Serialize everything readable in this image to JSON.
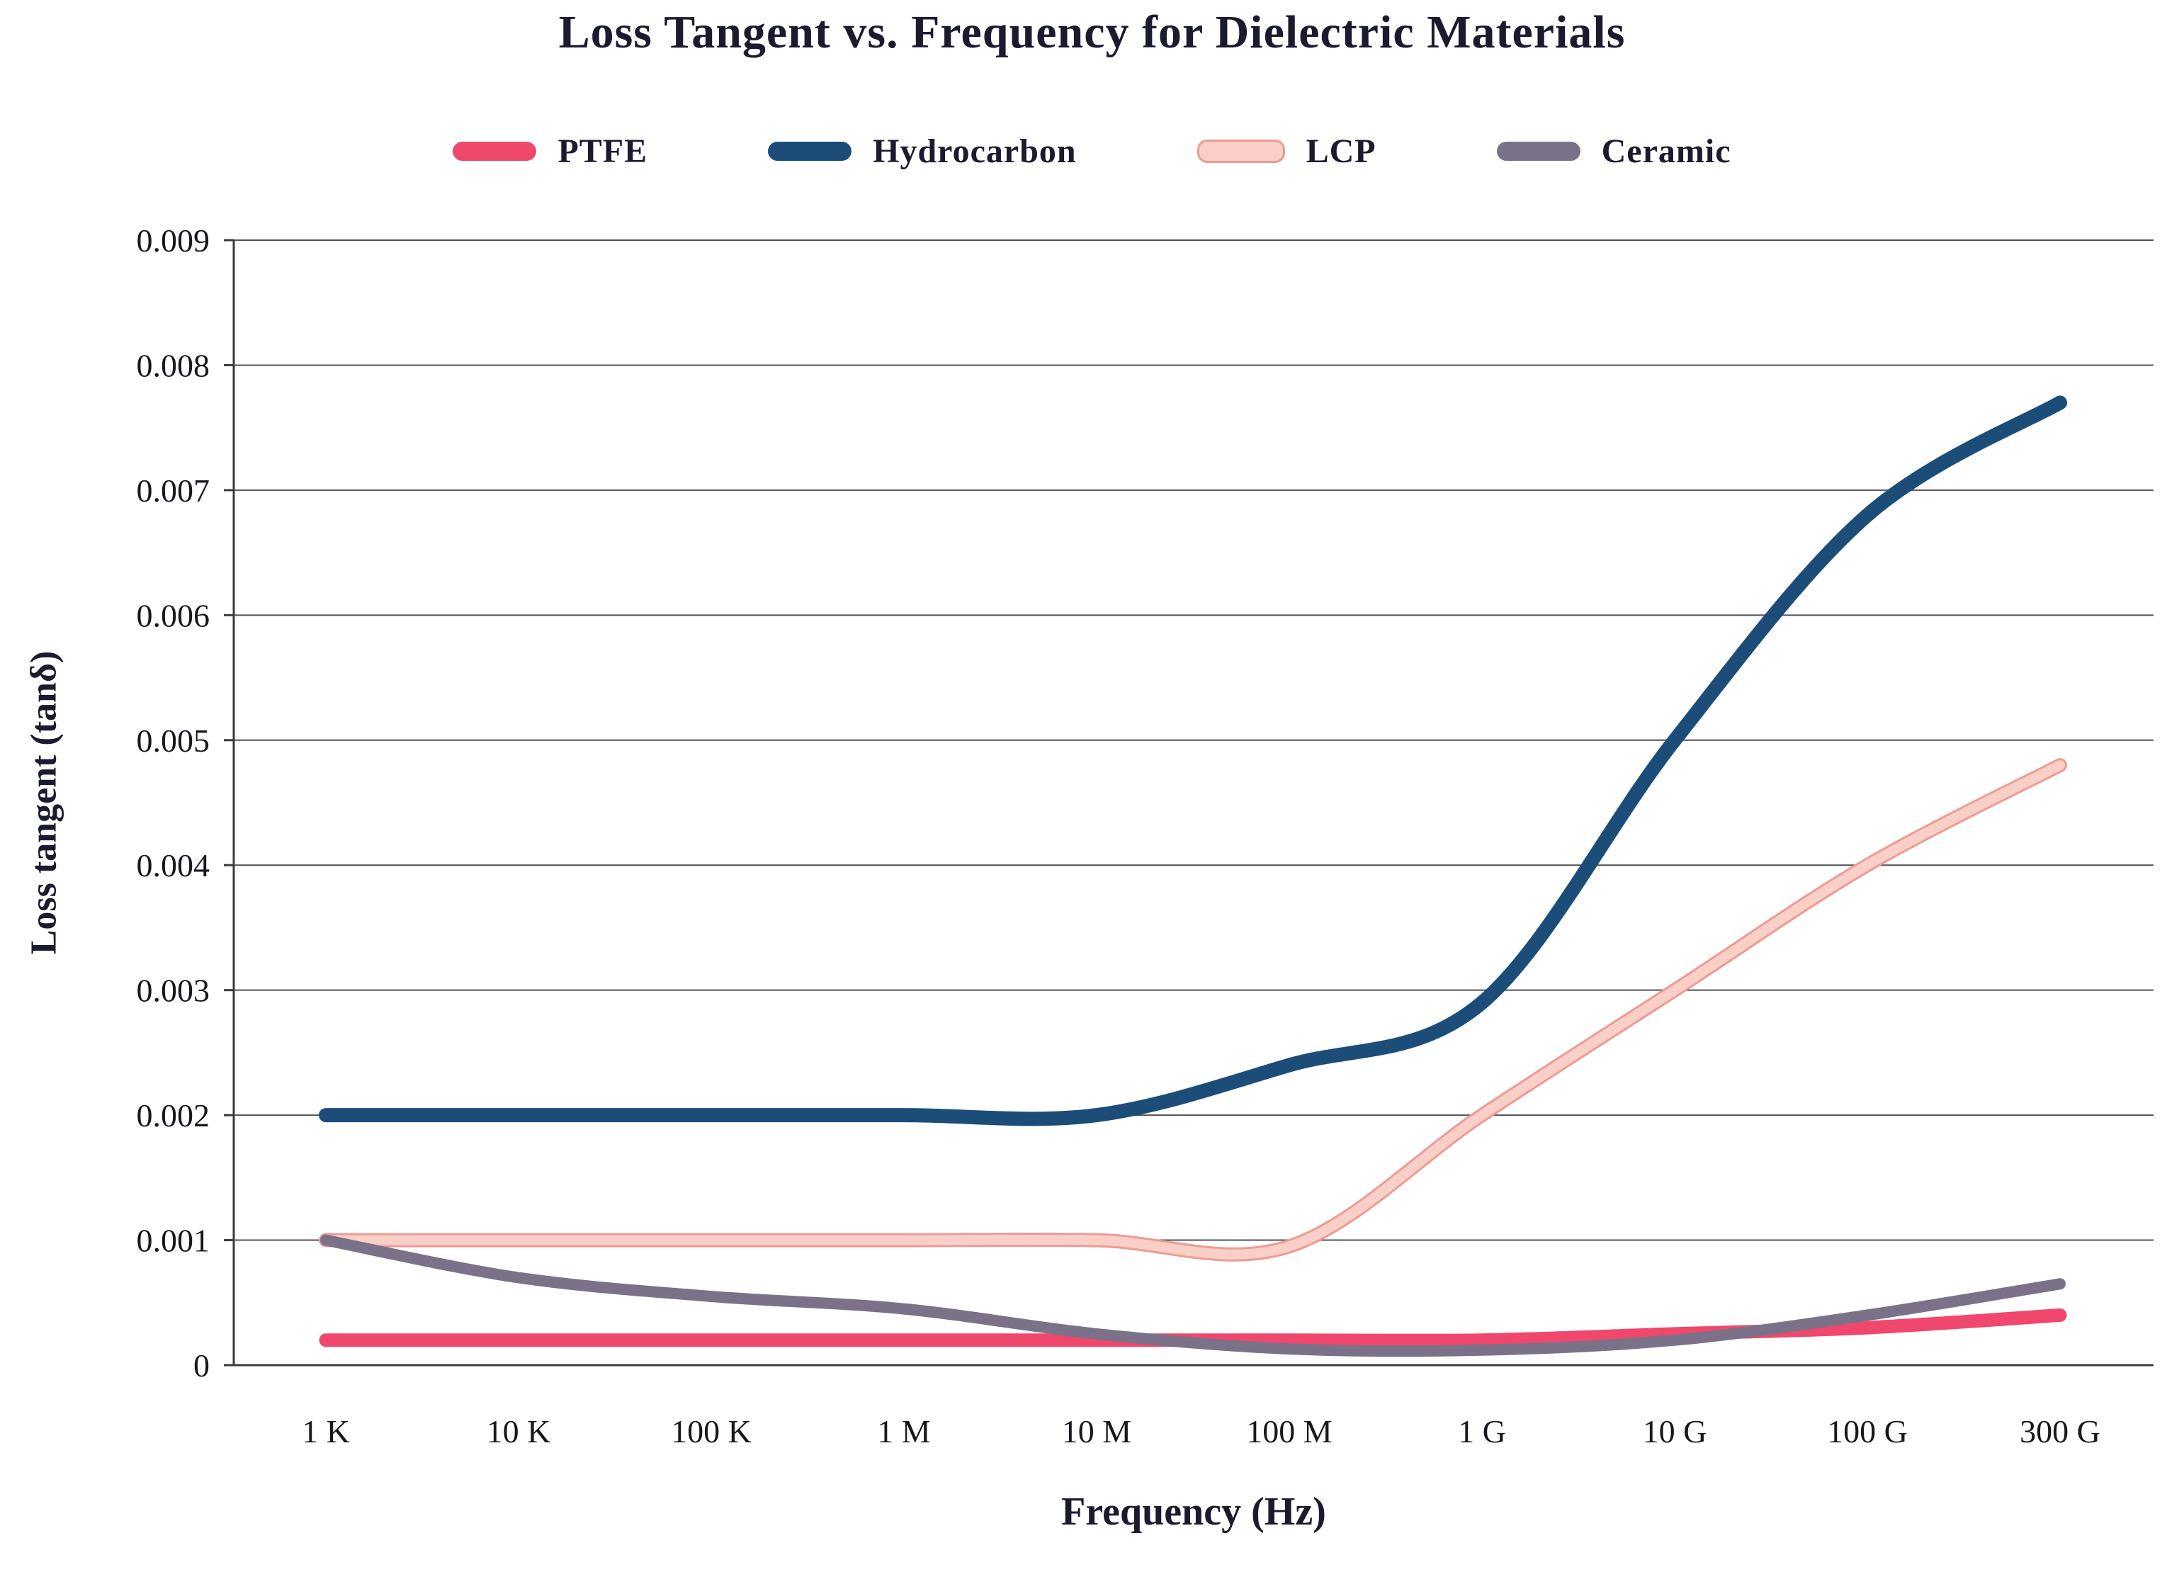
{
  "chart": {
    "background": "#ffffff",
    "text_color": "#1b1b30",
    "grid_color": "#515157",
    "axis_color": "#3a3a40"
  },
  "chart_data": {
    "type": "line",
    "title": "Loss Tangent vs. Frequency for Dielectric Materials",
    "xlabel": "Frequency (Hz)",
    "ylabel": "Loss tangent (tanδ)",
    "categories": [
      "1 K",
      "10 K",
      "100 K",
      "1 M",
      "10 M",
      "100 M",
      "1 G",
      "10 G",
      "100 G",
      "300 G"
    ],
    "ylim": [
      0,
      0.009
    ],
    "ytick_step": 0.001,
    "ytick_labels": [
      "0",
      "0.001",
      "0.002",
      "0.003",
      "0.004",
      "0.005",
      "0.006",
      "0.007",
      "0.008",
      "0.009"
    ],
    "grid": "horizontal",
    "legend_position": "top",
    "smooth": true,
    "series": [
      {
        "name": "PTFE",
        "color": "#f0476d",
        "line_width": 19,
        "values": [
          0.0002,
          0.0002,
          0.0002,
          0.0002,
          0.0002,
          0.0002,
          0.0002,
          0.00025,
          0.0003,
          0.0004
        ]
      },
      {
        "name": "Hydrocarbon",
        "color": "#1b4d78",
        "line_width": 20,
        "values": [
          0.002,
          0.002,
          0.002,
          0.002,
          0.002,
          0.0024,
          0.0029,
          0.005,
          0.0068,
          0.0077
        ]
      },
      {
        "name": "LCP",
        "color": "#f9cfc8",
        "edge_color": "#eb9c92",
        "line_width": 14,
        "values": [
          0.001,
          0.001,
          0.001,
          0.001,
          0.001,
          0.00095,
          0.002,
          0.003,
          0.004,
          0.0048
        ]
      },
      {
        "name": "Ceramic",
        "color": "#7b7289",
        "line_width": 16,
        "values": [
          0.001,
          0.0007,
          0.00055,
          0.00045,
          0.00025,
          0.00013,
          0.00012,
          0.0002,
          0.0004,
          0.00065
        ]
      }
    ]
  }
}
